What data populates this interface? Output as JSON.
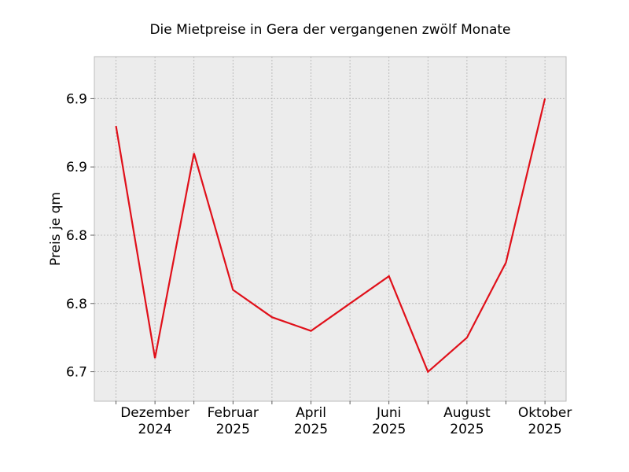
{
  "chart_data": {
    "type": "line",
    "title": "Die Mietpreise in Gera der vergangenen zwölf Monate",
    "xlabel": "",
    "ylabel": "Preis je qm",
    "x": [
      "2024-11",
      "2024-12",
      "2025-01",
      "2025-02",
      "2025-03",
      "2025-04",
      "2025-05",
      "2025-06",
      "2025-07",
      "2025-08",
      "2025-09",
      "2025-10"
    ],
    "series": [
      {
        "values": [
          6.9,
          6.73,
          6.88,
          6.78,
          6.76,
          6.75,
          6.77,
          6.79,
          6.72,
          6.745,
          6.8,
          6.92
        ]
      }
    ],
    "x_ticks": [
      {
        "x": "2024-12",
        "label": [
          "Dezember",
          "2024"
        ]
      },
      {
        "x": "2025-02",
        "label": [
          "Februar",
          "2025"
        ]
      },
      {
        "x": "2025-04",
        "label": [
          "April",
          "2025"
        ]
      },
      {
        "x": "2025-06",
        "label": [
          "Juni",
          "2025"
        ]
      },
      {
        "x": "2025-08",
        "label": [
          "August",
          "2025"
        ]
      },
      {
        "x": "2025-10",
        "label": [
          "Oktober",
          "2025"
        ]
      }
    ],
    "y_ticks": [
      {
        "value": 6.72,
        "label": "6.7"
      },
      {
        "value": 6.77,
        "label": "6.8"
      },
      {
        "value": 6.82,
        "label": "6.8"
      },
      {
        "value": 6.87,
        "label": "6.9"
      },
      {
        "value": 6.92,
        "label": "6.9"
      }
    ],
    "ylim": [
      6.6985,
      6.9507
    ],
    "grid": true,
    "colors": {
      "line": "#e0101a",
      "plot_background": "#ececec",
      "grid": "#b0b0b0",
      "frame": "#bbbbbb"
    }
  }
}
